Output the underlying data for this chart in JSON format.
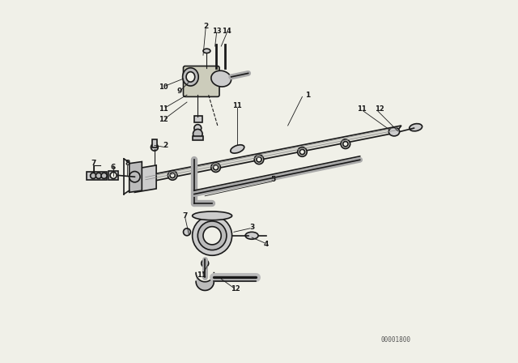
{
  "bg_color": "#f0f0e8",
  "line_color": "#1a1a1a",
  "watermark": "00001800"
}
